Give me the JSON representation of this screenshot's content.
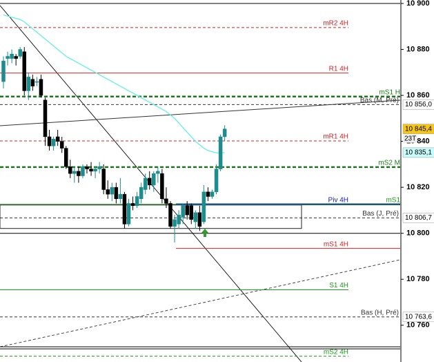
{
  "chart_data": {
    "type": "candlestick",
    "categories": [
      null,
      null,
      null,
      null,
      null,
      null,
      null,
      null,
      null,
      null,
      null,
      null,
      null,
      null,
      null,
      null,
      null,
      null,
      null,
      null,
      null,
      null,
      null,
      null,
      null,
      null,
      null,
      null,
      null,
      null,
      null,
      null,
      null,
      null,
      null,
      null,
      null,
      null,
      null,
      null,
      null,
      null,
      null,
      null,
      null,
      null,
      null,
      null,
      null,
      null,
      null,
      null,
      null,
      null
    ],
    "open": [
      10866,
      10876,
      10876,
      10877,
      10877,
      10879,
      10862,
      10867,
      10866,
      10867,
      10858,
      10842,
      10838,
      10842,
      10840,
      10837,
      10829,
      10826,
      10827,
      10825,
      10829,
      10828,
      10827,
      10828,
      10828,
      10819,
      10817,
      10820,
      10815,
      10817,
      10804,
      10813,
      10812,
      10815,
      10819,
      10824,
      10821,
      10826,
      10826,
      10815,
      10813,
      10803,
      10804,
      10807,
      10812,
      10812,
      10805,
      10809,
      10805,
      10818,
      10816,
      10818,
      10828,
      10842
    ],
    "high": [
      10877,
      10879,
      10880,
      10878,
      10881,
      10881,
      10870,
      10869,
      10868,
      10869,
      10859,
      10845,
      10842,
      10845,
      10842,
      10838,
      10832,
      10829,
      10829,
      10830,
      10830,
      10831,
      10829,
      10831,
      10830,
      10823,
      10822,
      10822,
      10824,
      10818,
      10815,
      10816,
      10818,
      10822,
      10826,
      10827,
      10827,
      10829,
      10828,
      10820,
      10814,
      10808,
      10810,
      10813,
      10814,
      10813,
      10810,
      10812,
      10821,
      10820,
      10819,
      10830,
      10843,
      10847
    ],
    "low": [
      10863,
      10873,
      10874,
      10873,
      10876,
      10860,
      10858,
      10862,
      10864,
      10859,
      10838,
      10836,
      10836,
      10838,
      10835,
      10828,
      10824,
      10822,
      10822,
      10824,
      10826,
      10825,
      10824,
      10826,
      10817,
      10815,
      10814,
      10813,
      10813,
      10802,
      10803,
      10810,
      10811,
      10813,
      10817,
      10819,
      10818,
      10822,
      10813,
      10811,
      10802,
      10796,
      10802,
      10804,
      10806,
      10804,
      10802,
      10801,
      10804,
      10814,
      10815,
      10817,
      10827,
      10840
    ],
    "close": [
      10875,
      10877,
      10878,
      10876,
      10880,
      10862,
      10868,
      10864,
      10866,
      10860,
      10842,
      10838,
      10841,
      10840,
      10837,
      10829,
      10826,
      10827,
      10825,
      10829,
      10828,
      10827,
      10828,
      10829,
      10819,
      10817,
      10820,
      10815,
      10817,
      10804,
      10813,
      10812,
      10816,
      10820,
      10824,
      10821,
      10826,
      10827,
      10815,
      10813,
      10803,
      10806,
      10808,
      10812,
      10808,
      10806,
      10809,
      10803,
      10818,
      10816,
      10818,
      10828,
      10842,
      10845.4
    ],
    "up_color": "#1e8c8c",
    "down_color": "#000000",
    "moving_average": {
      "color": "#5ff0e8",
      "values": [
        10895,
        10894.5,
        10894,
        10893.5,
        10893,
        10892,
        10890.5,
        10889,
        10887.5,
        10886,
        10884.5,
        10883,
        10881.5,
        10880,
        10878.5,
        10877,
        10876,
        10875,
        10874,
        10873,
        10872,
        10871,
        10870,
        10869,
        10868,
        10867,
        10866,
        10865,
        10864,
        10863,
        10862,
        10861,
        10860,
        10859,
        10858,
        10857,
        10856,
        10855,
        10854,
        10853,
        10851.5,
        10850,
        10848,
        10846,
        10844,
        10842,
        10840,
        10838.5,
        10837,
        10836,
        10835.5,
        10835,
        10835,
        10835.1
      ]
    },
    "ylim": [
      10744,
      10901.5
    ],
    "yticks": [
      {
        "value": 10900,
        "label": "10 900"
      },
      {
        "value": 10880,
        "label": "10 880"
      },
      {
        "value": 10860,
        "label": "10 860"
      },
      {
        "value": 10840,
        "label": "10 840"
      },
      {
        "value": 10820,
        "label": "10 820"
      },
      {
        "value": 10800,
        "label": "10 800"
      },
      {
        "value": 10780,
        "label": "10 780"
      },
      {
        "value": 10760,
        "label": "10 760"
      }
    ],
    "levels": [
      {
        "value": 10900,
        "color": "#000000",
        "dashed": false
      },
      {
        "label": "mR2 4H",
        "value": 10889.5,
        "color": "#d42020",
        "dashed": true
      },
      {
        "label": "R1 4H",
        "value": 10869.7,
        "color": "#d42020",
        "dashed": false
      },
      {
        "label": "mS1 H",
        "value": 10859.5,
        "color": "#1a7a1a",
        "dashed": true,
        "thick": true
      },
      {
        "label": "Bas (M, Pré)",
        "value": 10856,
        "color": "#333333",
        "dashed": true
      },
      {
        "label": "mR1 4H",
        "value": 10840.2,
        "color": "#d42020",
        "dashed": true
      },
      {
        "label": "mS2 M",
        "value": 10828.8,
        "color": "#1a7a1a",
        "dashed": true,
        "thick": true
      },
      {
        "label": "Piv 4H",
        "value": 10812.6,
        "color": "#1020c0",
        "dashed": false,
        "thick": true
      },
      {
        "label": "mS1",
        "value": 10812.6,
        "color": "#1a9a1a",
        "dashed": false
      },
      {
        "label": "Bas (J, Pré)",
        "value": 10806.7,
        "color": "#333333",
        "dashed": true
      },
      {
        "value": 10800,
        "color": "#000000",
        "dashed": false
      },
      {
        "label": "mS1 4H",
        "value": 10793.4,
        "color": "#d42020",
        "dashed": false
      },
      {
        "label": "S1 4H",
        "value": 10775.4,
        "color": "#1a9a1a",
        "dashed": false
      },
      {
        "label": "Bas (H, Pré)",
        "value": 10763.6,
        "color": "#333333",
        "dashed": true
      },
      {
        "label": "mS2 4H",
        "value": 10746.5,
        "color": "#1a9a1a",
        "dashed": true
      }
    ],
    "zone": {
      "top": 10812.3,
      "bottom": 10802.1
    },
    "price_tags": [
      {
        "label": "10 856,0",
        "value": 10856,
        "color": "#ffffff"
      },
      {
        "label": "10 845,4",
        "value": 10845.4,
        "color": "#f5c518"
      },
      {
        "label": "10 835,1",
        "value": 10835.1,
        "color": "#c8fbfb"
      },
      {
        "label": "10 806,7",
        "value": 10806.7,
        "color": "#ffffff"
      },
      {
        "label": "10 763,6",
        "value": 10763.6,
        "color": "#ffffff"
      }
    ],
    "countdown": "23T"
  }
}
